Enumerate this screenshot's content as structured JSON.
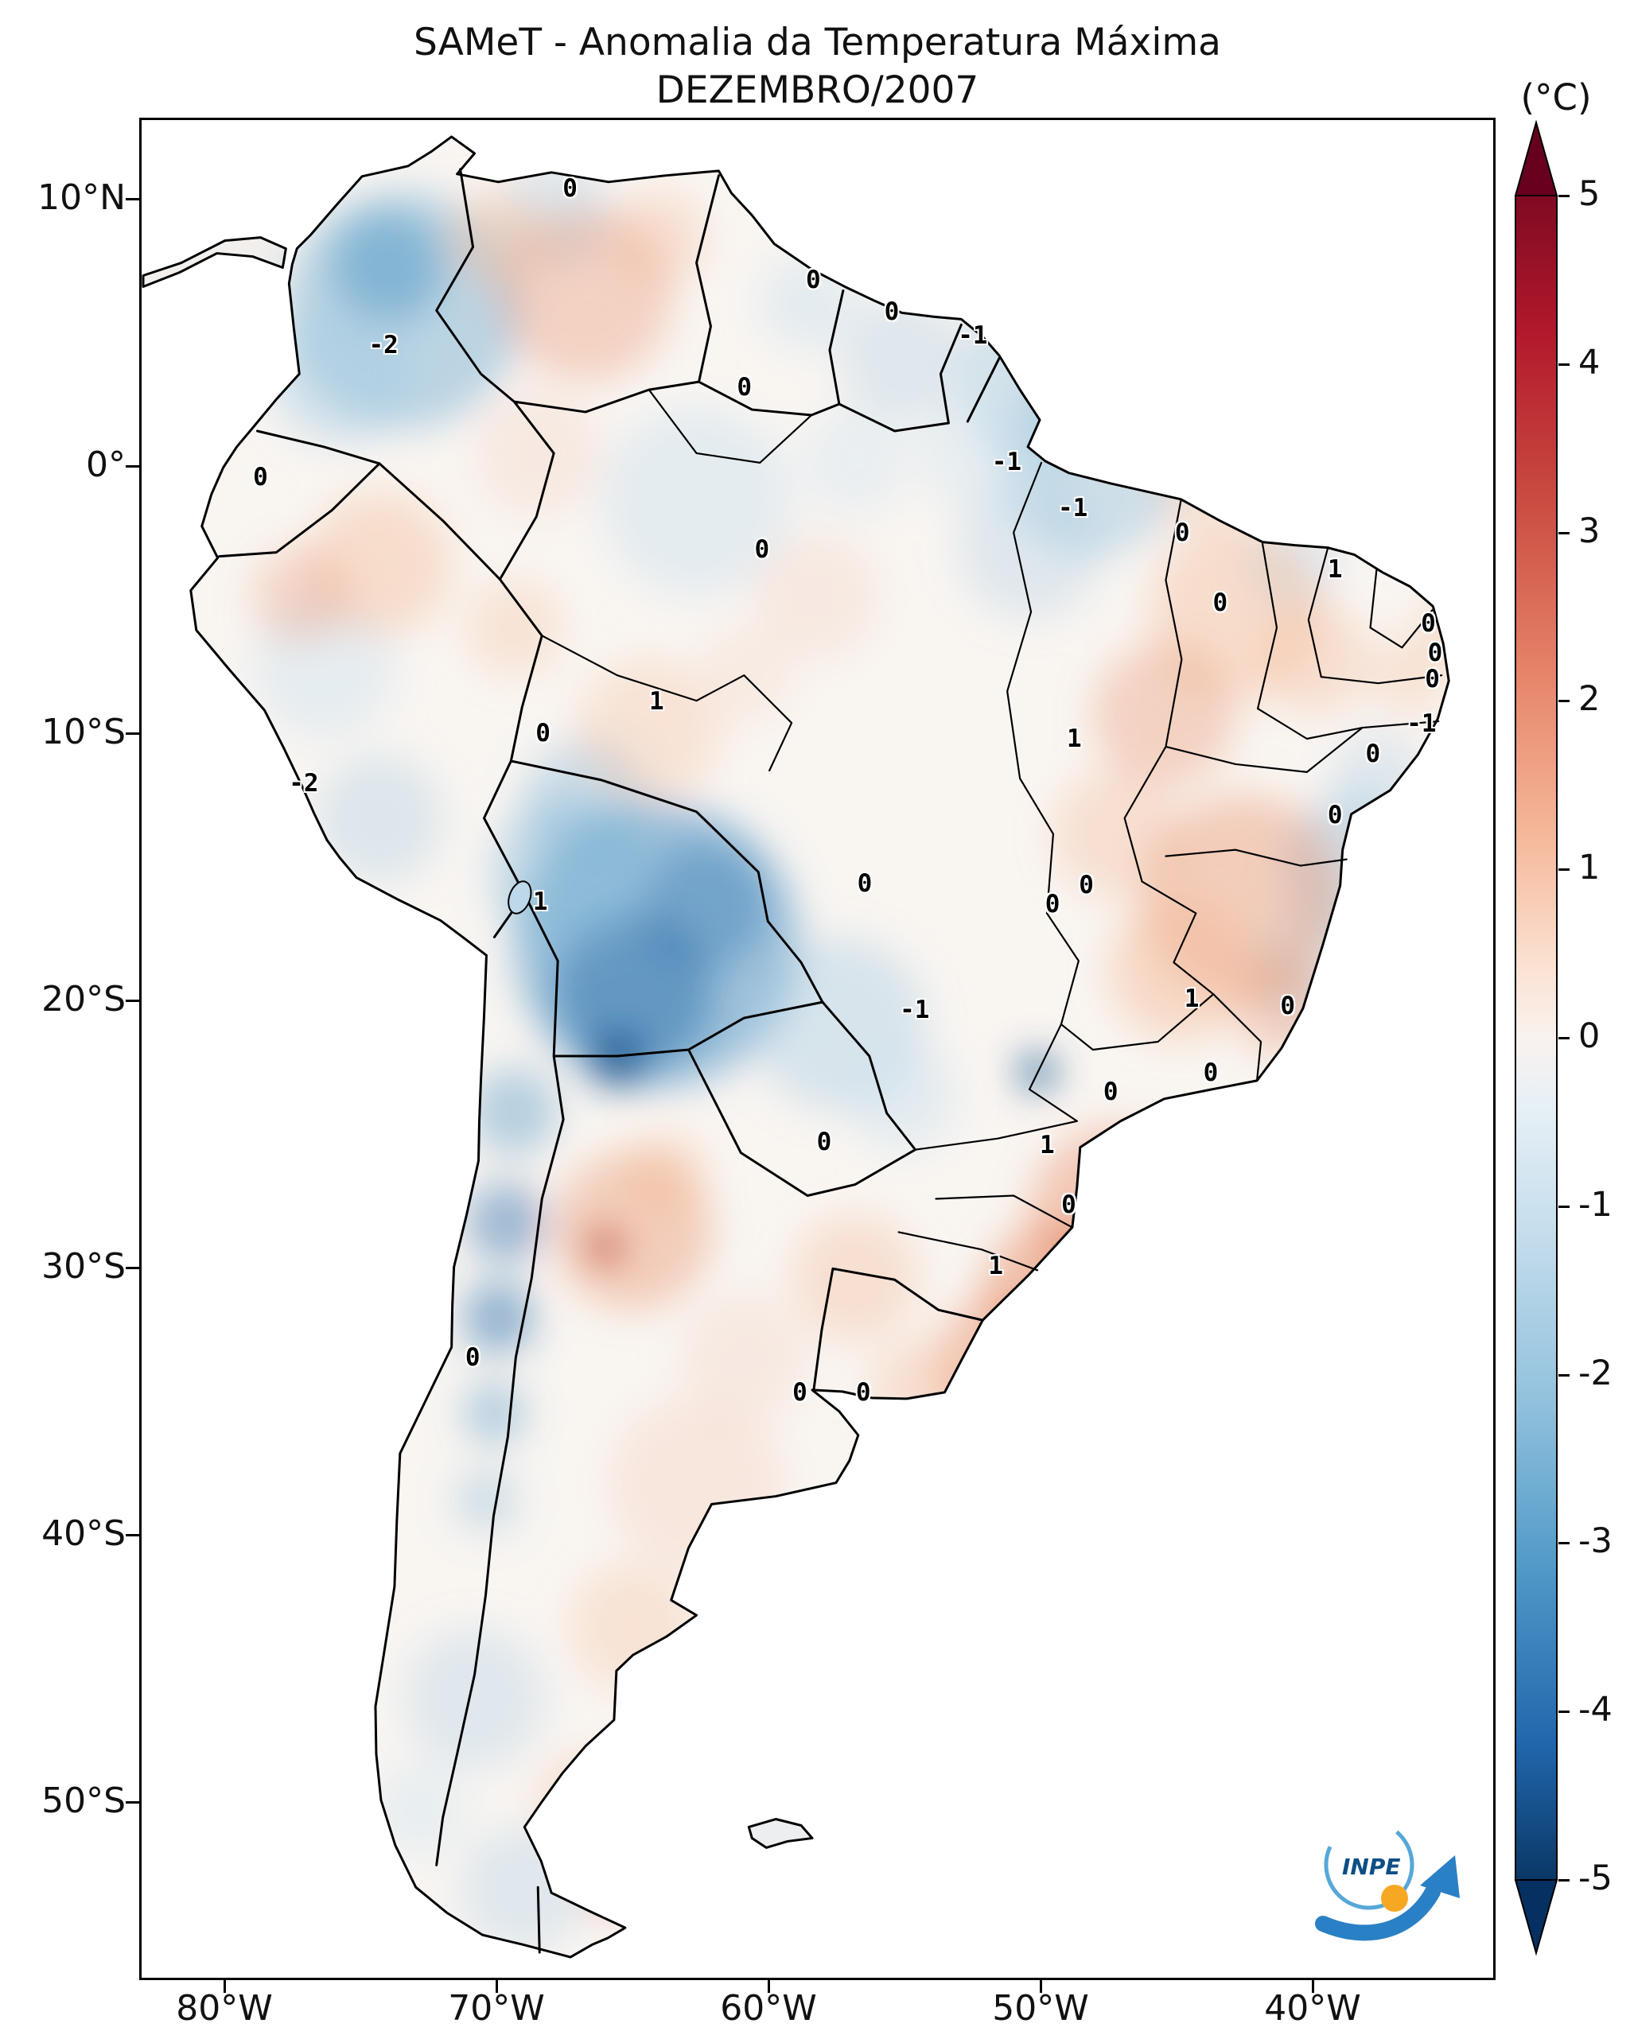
{
  "header": {
    "title": "SAMeT - Anomalia da Temperatura Máxima",
    "subtitle": "DEZEMBRO/2007"
  },
  "axes": {
    "lat_ticks": [
      "10°N",
      "0°",
      "10°S",
      "20°S",
      "30°S",
      "40°S",
      "50°S"
    ],
    "lon_ticks": [
      "80°W",
      "70°W",
      "60°W",
      "50°W",
      "40°W"
    ]
  },
  "colorbar": {
    "unit": "(°C)",
    "ticks": [
      "5",
      "4",
      "3",
      "2",
      "1",
      "0",
      "-1",
      "-2",
      "-3",
      "-4",
      "-5"
    ],
    "top_color": "#67001f",
    "bottom_color": "#053061",
    "zero_color": "#f7f7f7"
  },
  "logo": {
    "text": "INPE"
  },
  "chart_data": {
    "type": "heatmap",
    "title": "SAMeT - Anomalia da Temperatura Máxima",
    "subtitle": "DEZEMBRO/2007",
    "region": "South America",
    "colorbar_unit": "(°C)",
    "value_range": [
      -5,
      5
    ],
    "colorbar_ticks": [
      5,
      4,
      3,
      2,
      1,
      0,
      -1,
      -2,
      -3,
      -4,
      -5
    ],
    "colormap": "RdBu_r (red = positive anomaly, blue = negative anomaly)",
    "lat_ticks": [
      "10°N",
      "0°",
      "10°S",
      "20°S",
      "30°S",
      "40°S",
      "50°S"
    ],
    "lon_ticks": [
      "80°W",
      "70°W",
      "60°W",
      "50°W",
      "40°W"
    ],
    "legend_position": "right colorbar with extend arrows both ends",
    "region_labels": [
      {
        "value": "0",
        "x_pct": 31.7,
        "y_pct": 3.7
      },
      {
        "value": "0",
        "x_pct": 49.7,
        "y_pct": 8.6
      },
      {
        "value": "0",
        "x_pct": 55.5,
        "y_pct": 10.3
      },
      {
        "value": "-1",
        "x_pct": 61.5,
        "y_pct": 11.6
      },
      {
        "value": "-2",
        "x_pct": 17.9,
        "y_pct": 12.1
      },
      {
        "value": "0",
        "x_pct": 44.6,
        "y_pct": 14.4
      },
      {
        "value": "-1",
        "x_pct": 64.0,
        "y_pct": 18.4
      },
      {
        "value": "0",
        "x_pct": 8.8,
        "y_pct": 19.2
      },
      {
        "value": "-1",
        "x_pct": 68.9,
        "y_pct": 20.9
      },
      {
        "value": "0",
        "x_pct": 77.0,
        "y_pct": 22.2
      },
      {
        "value": "0",
        "x_pct": 45.9,
        "y_pct": 23.1
      },
      {
        "value": "1",
        "x_pct": 88.3,
        "y_pct": 24.2
      },
      {
        "value": "0",
        "x_pct": 79.8,
        "y_pct": 26.0
      },
      {
        "value": "0",
        "x_pct": 95.2,
        "y_pct": 27.1
      },
      {
        "value": "0",
        "x_pct": 95.7,
        "y_pct": 28.7
      },
      {
        "value": "0",
        "x_pct": 95.5,
        "y_pct": 30.1
      },
      {
        "value": "1",
        "x_pct": 38.1,
        "y_pct": 31.3
      },
      {
        "value": "-1",
        "x_pct": 94.7,
        "y_pct": 32.5
      },
      {
        "value": "0",
        "x_pct": 29.7,
        "y_pct": 33.0
      },
      {
        "value": "1",
        "x_pct": 69.0,
        "y_pct": 33.3
      },
      {
        "value": "0",
        "x_pct": 91.1,
        "y_pct": 34.1
      },
      {
        "value": "-2",
        "x_pct": 12.0,
        "y_pct": 35.7
      },
      {
        "value": "0",
        "x_pct": 88.3,
        "y_pct": 37.4
      },
      {
        "value": "0",
        "x_pct": 53.5,
        "y_pct": 41.1
      },
      {
        "value": "0",
        "x_pct": 69.9,
        "y_pct": 41.2
      },
      {
        "value": "0",
        "x_pct": 67.4,
        "y_pct": 42.2
      },
      {
        "value": "1",
        "x_pct": 29.5,
        "y_pct": 42.1
      },
      {
        "value": "1",
        "x_pct": 77.7,
        "y_pct": 47.3
      },
      {
        "value": "0",
        "x_pct": 84.8,
        "y_pct": 47.7
      },
      {
        "value": "-1",
        "x_pct": 57.2,
        "y_pct": 47.9
      },
      {
        "value": "0",
        "x_pct": 79.1,
        "y_pct": 51.3
      },
      {
        "value": "0",
        "x_pct": 71.7,
        "y_pct": 52.3
      },
      {
        "value": "0",
        "x_pct": 50.5,
        "y_pct": 55.0
      },
      {
        "value": "1",
        "x_pct": 67.0,
        "y_pct": 55.2
      },
      {
        "value": "0",
        "x_pct": 68.6,
        "y_pct": 58.4
      },
      {
        "value": "1",
        "x_pct": 63.2,
        "y_pct": 61.7
      },
      {
        "value": "0",
        "x_pct": 24.5,
        "y_pct": 66.6
      },
      {
        "value": "0",
        "x_pct": 48.7,
        "y_pct": 68.5
      },
      {
        "value": "0",
        "x_pct": 53.4,
        "y_pct": 68.5
      }
    ]
  }
}
